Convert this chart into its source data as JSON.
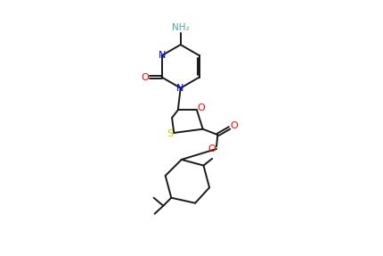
{
  "bg_color": "#ffffff",
  "bond_color": "#1a1a1a",
  "N_color": "#0000ff",
  "O_color": "#ff0000",
  "S_color": "#cccc00",
  "NH2_color": "#4da6a6",
  "line_width": 1.4,
  "figsize": [
    4.31,
    2.87
  ],
  "dpi": 100,
  "xlim": [
    0,
    8
  ],
  "ylim": [
    0,
    11
  ]
}
